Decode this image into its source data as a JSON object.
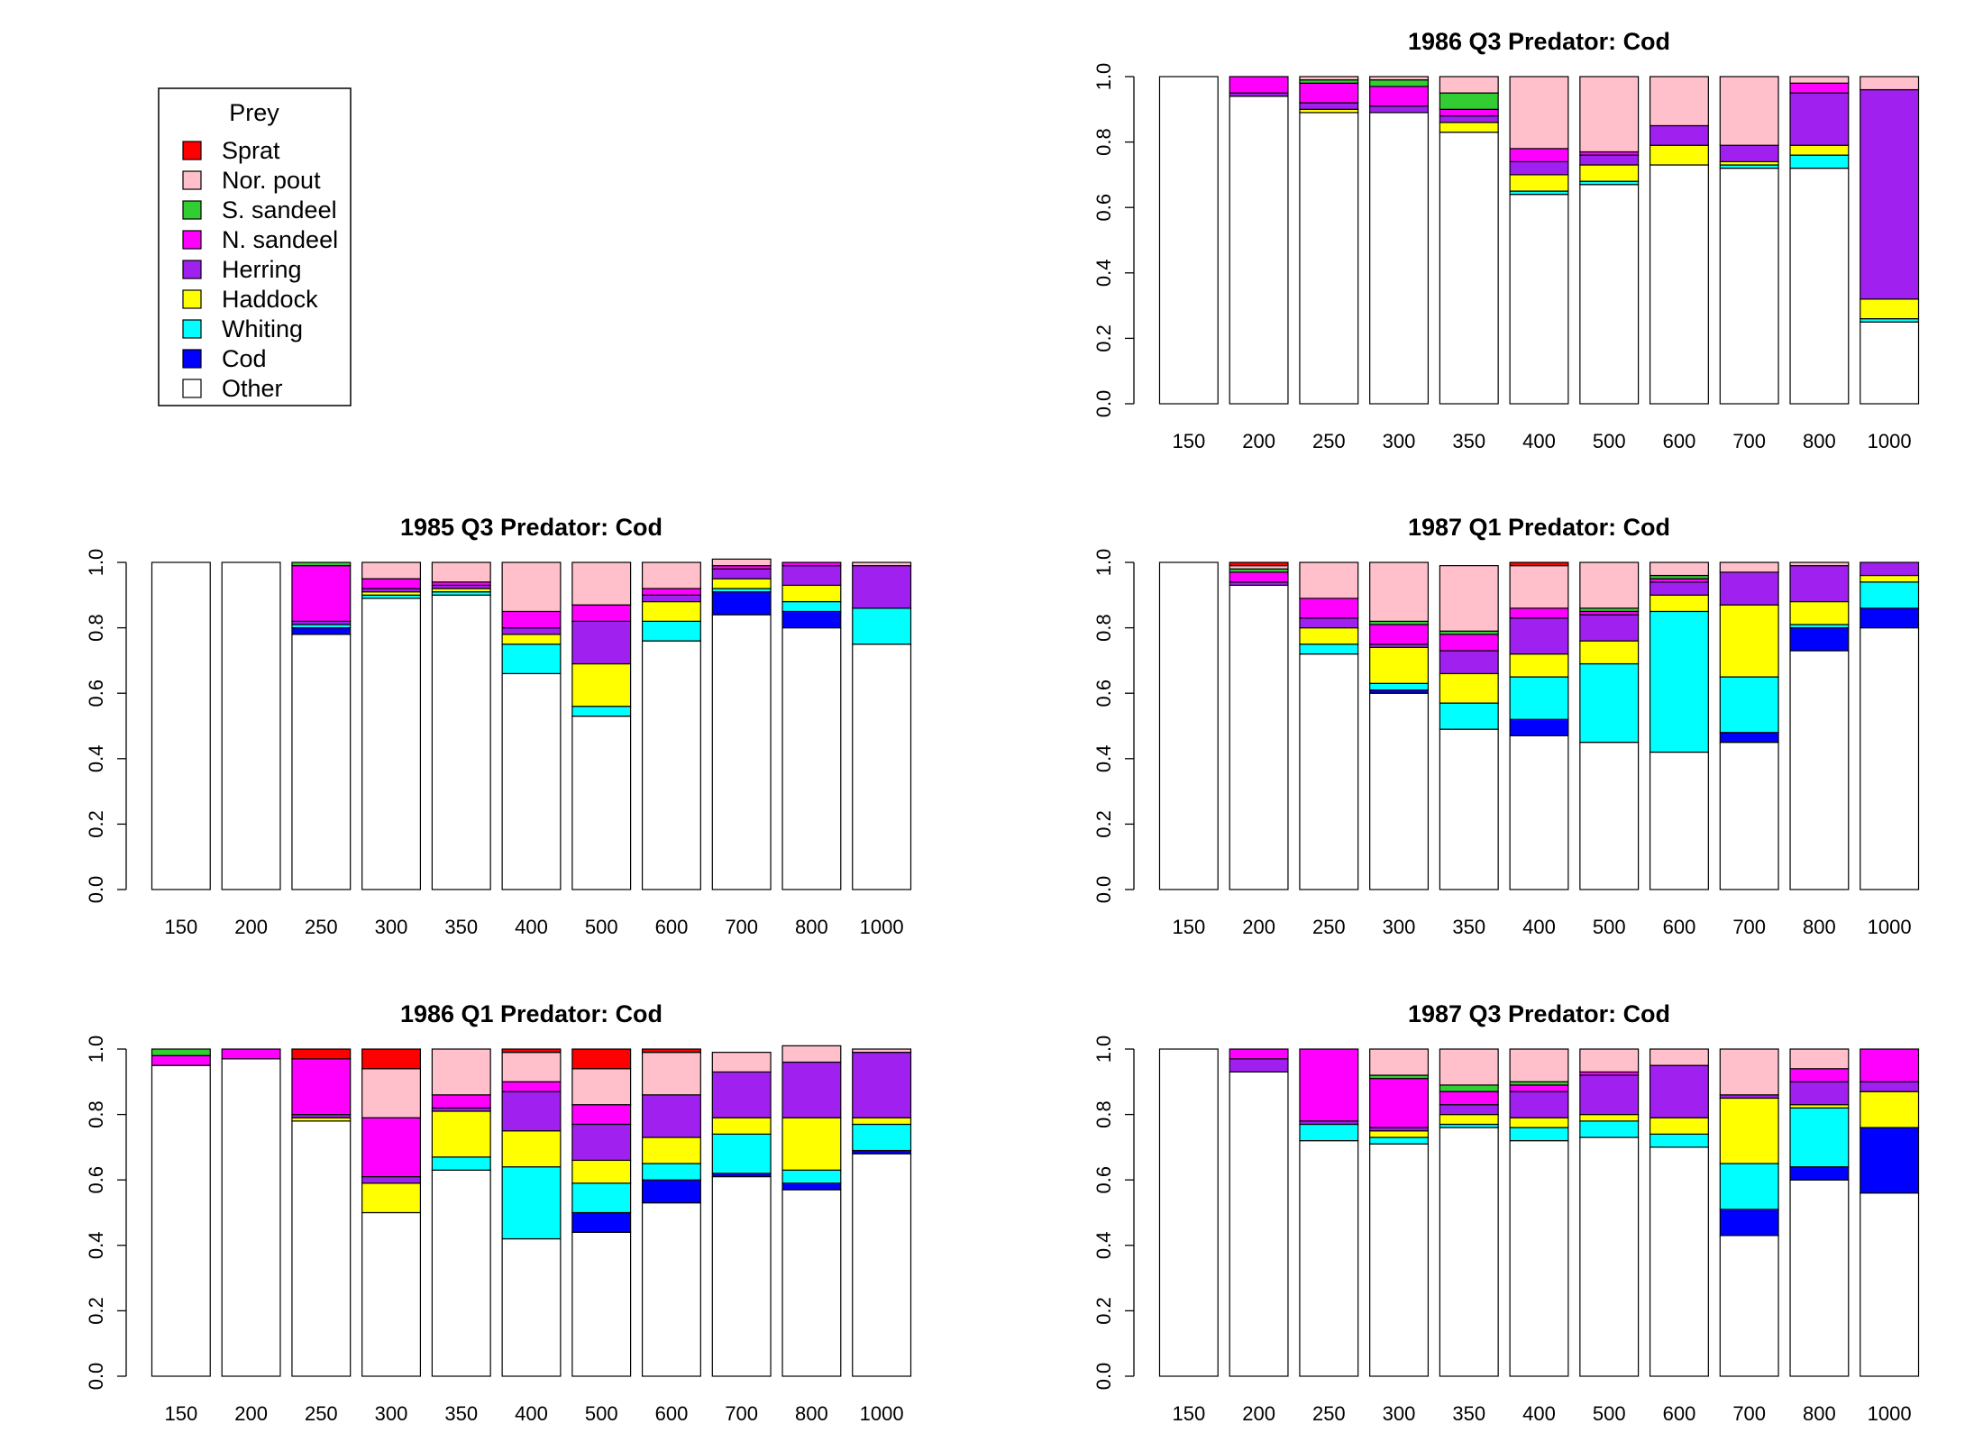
{
  "legend": {
    "title": "Prey",
    "items": [
      {
        "name": "Sprat",
        "color": "#ff0000"
      },
      {
        "name": "Nor. pout",
        "color": "#ffc0cb"
      },
      {
        "name": "S. sandeel",
        "color": "#32cd32"
      },
      {
        "name": "N. sandeel",
        "color": "#ff00ff"
      },
      {
        "name": "Herring",
        "color": "#a020f0"
      },
      {
        "name": "Haddock",
        "color": "#ffff00"
      },
      {
        "name": "Whiting",
        "color": "#00ffff"
      },
      {
        "name": "Cod",
        "color": "#0000ff"
      },
      {
        "name": "Other",
        "color": "#ffffff"
      }
    ]
  },
  "chart_data": [
    {
      "type": "bar",
      "stacked": true,
      "title": "1986 Q3  Predator: Cod",
      "categories": [
        "150",
        "200",
        "250",
        "300",
        "350",
        "400",
        "500",
        "600",
        "700",
        "800",
        "1000"
      ],
      "ylim": [
        0,
        1
      ],
      "yticks": [
        "0.0",
        "0.2",
        "0.4",
        "0.6",
        "0.8",
        "1.0"
      ],
      "stack_order": [
        "Other",
        "Cod",
        "Whiting",
        "Haddock",
        "Herring",
        "N. sandeel",
        "S. sandeel",
        "Nor. pout",
        "Sprat"
      ],
      "series": [
        {
          "name": "Other",
          "values": [
            1.0,
            0.94,
            0.89,
            0.89,
            0.83,
            0.64,
            0.67,
            0.73,
            0.72,
            0.72,
            0.25
          ]
        },
        {
          "name": "Cod",
          "values": [
            0,
            0,
            0,
            0,
            0,
            0,
            0,
            0,
            0,
            0,
            0
          ]
        },
        {
          "name": "Whiting",
          "values": [
            0,
            0,
            0,
            0,
            0,
            0.01,
            0.01,
            0,
            0.01,
            0.04,
            0.01
          ]
        },
        {
          "name": "Haddock",
          "values": [
            0,
            0,
            0.01,
            0,
            0.03,
            0.05,
            0.05,
            0.06,
            0.01,
            0.03,
            0.06
          ]
        },
        {
          "name": "Herring",
          "values": [
            0,
            0.01,
            0.02,
            0.02,
            0.02,
            0.04,
            0.03,
            0.06,
            0.05,
            0.16,
            0.64
          ]
        },
        {
          "name": "N. sandeel",
          "values": [
            0,
            0.05,
            0.06,
            0.06,
            0.02,
            0.04,
            0.01,
            0,
            0,
            0.03,
            0
          ]
        },
        {
          "name": "S. sandeel",
          "values": [
            0,
            0,
            0.01,
            0.02,
            0.05,
            0,
            0,
            0,
            0,
            0,
            0
          ]
        },
        {
          "name": "Nor. pout",
          "values": [
            0,
            0,
            0.01,
            0.01,
            0.05,
            0.22,
            0.23,
            0.15,
            0.21,
            0.02,
            0.04
          ]
        },
        {
          "name": "Sprat",
          "values": [
            0,
            0,
            0,
            0,
            0,
            0,
            0,
            0,
            0,
            0,
            0
          ]
        }
      ]
    },
    {
      "type": "bar",
      "stacked": true,
      "title": "1985 Q3  Predator: Cod",
      "categories": [
        "150",
        "200",
        "250",
        "300",
        "350",
        "400",
        "500",
        "600",
        "700",
        "800",
        "1000"
      ],
      "ylim": [
        0,
        1
      ],
      "yticks": [
        "0.0",
        "0.2",
        "0.4",
        "0.6",
        "0.8",
        "1.0"
      ],
      "stack_order": [
        "Other",
        "Cod",
        "Whiting",
        "Haddock",
        "Herring",
        "N. sandeel",
        "S. sandeel",
        "Nor. pout",
        "Sprat"
      ],
      "series": [
        {
          "name": "Other",
          "values": [
            1.0,
            1.0,
            0.78,
            0.89,
            0.9,
            0.66,
            0.53,
            0.76,
            0.84,
            0.8,
            0.75
          ]
        },
        {
          "name": "Cod",
          "values": [
            0,
            0,
            0.02,
            0,
            0,
            0,
            0,
            0,
            0.07,
            0.05,
            0
          ]
        },
        {
          "name": "Whiting",
          "values": [
            0,
            0,
            0.01,
            0.01,
            0.01,
            0.09,
            0.03,
            0.06,
            0.01,
            0.03,
            0.11
          ]
        },
        {
          "name": "Haddock",
          "values": [
            0,
            0,
            0,
            0.01,
            0.01,
            0.03,
            0.13,
            0.06,
            0.03,
            0.05,
            0
          ]
        },
        {
          "name": "Herring",
          "values": [
            0,
            0,
            0.01,
            0.01,
            0.01,
            0.02,
            0.13,
            0.02,
            0.03,
            0.06,
            0.13
          ]
        },
        {
          "name": "N. sandeel",
          "values": [
            0,
            0,
            0.17,
            0.03,
            0.01,
            0.05,
            0.05,
            0.02,
            0.01,
            0.01,
            0
          ]
        },
        {
          "name": "S. sandeel",
          "values": [
            0,
            0,
            0.01,
            0,
            0,
            0,
            0,
            0,
            0,
            0,
            0
          ]
        },
        {
          "name": "Nor. pout",
          "values": [
            0,
            0,
            0,
            0.05,
            0.06,
            0.15,
            0.13,
            0.08,
            0.02,
            0,
            0.01
          ]
        },
        {
          "name": "Sprat",
          "values": [
            0,
            0,
            0,
            0,
            0,
            0,
            0,
            0,
            0,
            0,
            0
          ]
        }
      ]
    },
    {
      "type": "bar",
      "stacked": true,
      "title": "1987 Q1  Predator: Cod",
      "categories": [
        "150",
        "200",
        "250",
        "300",
        "350",
        "400",
        "500",
        "600",
        "700",
        "800",
        "1000"
      ],
      "ylim": [
        0,
        1
      ],
      "yticks": [
        "0.0",
        "0.2",
        "0.4",
        "0.6",
        "0.8",
        "1.0"
      ],
      "stack_order": [
        "Other",
        "Cod",
        "Whiting",
        "Haddock",
        "Herring",
        "N. sandeel",
        "S. sandeel",
        "Nor. pout",
        "Sprat"
      ],
      "series": [
        {
          "name": "Other",
          "values": [
            1.0,
            0.93,
            0.72,
            0.6,
            0.49,
            0.47,
            0.45,
            0.42,
            0.45,
            0.73,
            0.8
          ]
        },
        {
          "name": "Cod",
          "values": [
            0,
            0,
            0,
            0.01,
            0,
            0.05,
            0,
            0,
            0.03,
            0.07,
            0.06
          ]
        },
        {
          "name": "Whiting",
          "values": [
            0,
            0,
            0.03,
            0.02,
            0.08,
            0.13,
            0.24,
            0.43,
            0.17,
            0.01,
            0.08
          ]
        },
        {
          "name": "Haddock",
          "values": [
            0,
            0,
            0.05,
            0.11,
            0.09,
            0.07,
            0.07,
            0.05,
            0.22,
            0.07,
            0.02
          ]
        },
        {
          "name": "Herring",
          "values": [
            0,
            0.01,
            0.03,
            0.01,
            0.07,
            0.11,
            0.08,
            0.04,
            0.1,
            0.11,
            0.04
          ]
        },
        {
          "name": "N. sandeel",
          "values": [
            0,
            0.03,
            0.06,
            0.06,
            0.05,
            0.03,
            0.01,
            0.01,
            0,
            0,
            0
          ]
        },
        {
          "name": "S. sandeel",
          "values": [
            0,
            0.01,
            0,
            0.01,
            0.01,
            0,
            0.01,
            0.01,
            0,
            0,
            0
          ]
        },
        {
          "name": "Nor. pout",
          "values": [
            0,
            0.01,
            0.11,
            0.18,
            0.2,
            0.13,
            0.14,
            0.04,
            0.03,
            0.01,
            0
          ]
        },
        {
          "name": "Sprat",
          "values": [
            0,
            0.01,
            0,
            0,
            0,
            0.01,
            0,
            0,
            0,
            0,
            0
          ]
        }
      ]
    },
    {
      "type": "bar",
      "stacked": true,
      "title": "1986 Q1  Predator: Cod",
      "categories": [
        "150",
        "200",
        "250",
        "300",
        "350",
        "400",
        "500",
        "600",
        "700",
        "800",
        "1000"
      ],
      "ylim": [
        0,
        1
      ],
      "yticks": [
        "0.0",
        "0.2",
        "0.4",
        "0.6",
        "0.8",
        "1.0"
      ],
      "stack_order": [
        "Other",
        "Cod",
        "Whiting",
        "Haddock",
        "Herring",
        "N. sandeel",
        "S. sandeel",
        "Nor. pout",
        "Sprat"
      ],
      "series": [
        {
          "name": "Other",
          "values": [
            0.95,
            0.97,
            0.78,
            0.5,
            0.63,
            0.42,
            0.44,
            0.53,
            0.61,
            0.57,
            0.68
          ]
        },
        {
          "name": "Cod",
          "values": [
            0,
            0,
            0,
            0,
            0,
            0,
            0.06,
            0.07,
            0.01,
            0.02,
            0.01
          ]
        },
        {
          "name": "Whiting",
          "values": [
            0,
            0,
            0,
            0,
            0.04,
            0.22,
            0.09,
            0.05,
            0.12,
            0.04,
            0.08
          ]
        },
        {
          "name": "Haddock",
          "values": [
            0,
            0,
            0.01,
            0.09,
            0.14,
            0.11,
            0.07,
            0.08,
            0.05,
            0.16,
            0.02
          ]
        },
        {
          "name": "Herring",
          "values": [
            0,
            0,
            0.01,
            0.02,
            0.01,
            0.12,
            0.11,
            0.13,
            0.14,
            0.17,
            0.2
          ]
        },
        {
          "name": "N. sandeel",
          "values": [
            0.03,
            0.03,
            0.17,
            0.18,
            0.04,
            0.03,
            0.06,
            0,
            0,
            0,
            0
          ]
        },
        {
          "name": "S. sandeel",
          "values": [
            0.02,
            0,
            0,
            0,
            0,
            0,
            0,
            0,
            0,
            0,
            0
          ]
        },
        {
          "name": "Nor. pout",
          "values": [
            0,
            0,
            0,
            0.15,
            0.14,
            0.09,
            0.11,
            0.13,
            0.06,
            0.05,
            0.01
          ]
        },
        {
          "name": "Sprat",
          "values": [
            0,
            0,
            0.03,
            0.06,
            0,
            0.01,
            0.06,
            0.01,
            0,
            0,
            0
          ]
        }
      ]
    },
    {
      "type": "bar",
      "stacked": true,
      "title": "1987 Q3  Predator: Cod",
      "categories": [
        "150",
        "200",
        "250",
        "300",
        "350",
        "400",
        "500",
        "600",
        "700",
        "800",
        "1000"
      ],
      "ylim": [
        0,
        1
      ],
      "yticks": [
        "0.0",
        "0.2",
        "0.4",
        "0.6",
        "0.8",
        "1.0"
      ],
      "stack_order": [
        "Other",
        "Cod",
        "Whiting",
        "Haddock",
        "Herring",
        "N. sandeel",
        "S. sandeel",
        "Nor. pout",
        "Sprat"
      ],
      "series": [
        {
          "name": "Other",
          "values": [
            1.0,
            0.93,
            0.72,
            0.71,
            0.76,
            0.72,
            0.73,
            0.7,
            0.43,
            0.6,
            0.56
          ]
        },
        {
          "name": "Cod",
          "values": [
            0,
            0,
            0,
            0,
            0,
            0,
            0,
            0,
            0.08,
            0.04,
            0.2
          ]
        },
        {
          "name": "Whiting",
          "values": [
            0,
            0,
            0.05,
            0.02,
            0.01,
            0.04,
            0.05,
            0.04,
            0.14,
            0.18,
            0
          ]
        },
        {
          "name": "Haddock",
          "values": [
            0,
            0,
            0,
            0.02,
            0.03,
            0.03,
            0.02,
            0.05,
            0.2,
            0.01,
            0.11
          ]
        },
        {
          "name": "Herring",
          "values": [
            0,
            0.04,
            0.01,
            0.01,
            0.03,
            0.08,
            0.12,
            0.16,
            0.01,
            0.07,
            0.03
          ]
        },
        {
          "name": "N. sandeel",
          "values": [
            0,
            0.03,
            0.22,
            0.15,
            0.04,
            0.02,
            0.01,
            0,
            0,
            0.04,
            0.1
          ]
        },
        {
          "name": "S. sandeel",
          "values": [
            0,
            0,
            0,
            0.01,
            0.02,
            0.01,
            0,
            0,
            0,
            0,
            0
          ]
        },
        {
          "name": "Nor. pout",
          "values": [
            0,
            0,
            0,
            0.08,
            0.11,
            0.1,
            0.07,
            0.05,
            0.14,
            0.06,
            0
          ]
        },
        {
          "name": "Sprat",
          "values": [
            0,
            0,
            0,
            0,
            0,
            0,
            0,
            0,
            0,
            0,
            0
          ]
        }
      ]
    }
  ]
}
